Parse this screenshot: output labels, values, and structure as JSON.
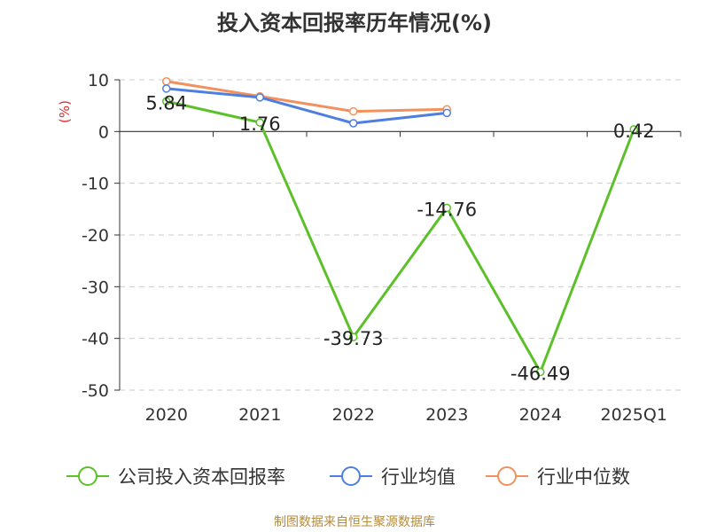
{
  "chart_data": {
    "type": "line",
    "title": "投入资本回报率历年情况(%)",
    "ylabel": "(%)",
    "xlabel": "",
    "categories": [
      "2020",
      "2021",
      "2022",
      "2023",
      "2024",
      "2025Q1"
    ],
    "y_ticks": [
      10,
      0,
      -10,
      -20,
      -30,
      -40,
      -50
    ],
    "ylim": [
      -50,
      10
    ],
    "grid": "horizontal dashed",
    "legend_position": "bottom",
    "series": [
      {
        "name": "公司投入资本回报率",
        "color": "#5cc02a",
        "values": [
          5.84,
          1.76,
          -39.73,
          -14.76,
          -46.49,
          0.42
        ],
        "labels": [
          "5.84",
          "1.76",
          "-39.73",
          "-14.76",
          "-46.49",
          "0.42"
        ]
      },
      {
        "name": "行业均值",
        "color": "#4e7fe0",
        "values": [
          8.3,
          6.6,
          1.6,
          3.6,
          null,
          null
        ]
      },
      {
        "name": "行业中位数",
        "color": "#f2915d",
        "values": [
          9.7,
          6.8,
          3.9,
          4.3,
          null,
          null
        ]
      }
    ]
  },
  "source": "制图数据来自恒生聚源数据库",
  "axis_color": "#333333",
  "ylabel_color": "#d9302c"
}
